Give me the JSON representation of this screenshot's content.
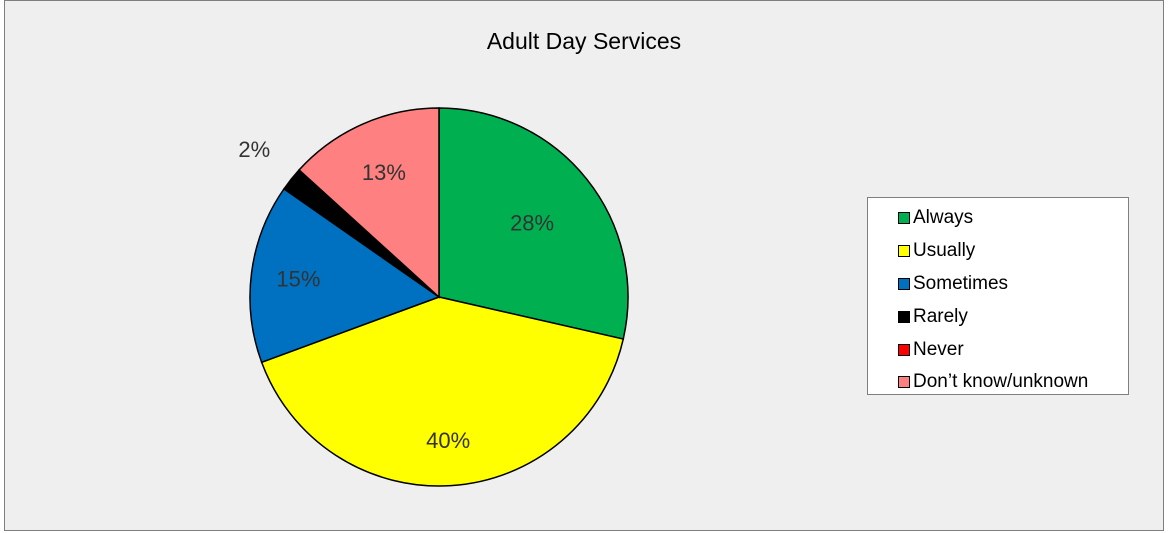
{
  "chart_data": {
    "type": "pie",
    "title": "Adult Day Services",
    "categories": [
      "Always",
      "Usually",
      "Sometimes",
      "Rarely",
      "Never",
      "Don’t know/unknown"
    ],
    "values": [
      28,
      40,
      15,
      2,
      0,
      13
    ],
    "data_labels": [
      "28%",
      "40%",
      "15%",
      "2%",
      "",
      "13%"
    ],
    "colors": [
      "#00b050",
      "#ffff00",
      "#0070c0",
      "#000000",
      "#ff0000",
      "#ff8080"
    ],
    "start_angle_deg": 0,
    "direction": "clockwise",
    "legend_position": "right"
  }
}
